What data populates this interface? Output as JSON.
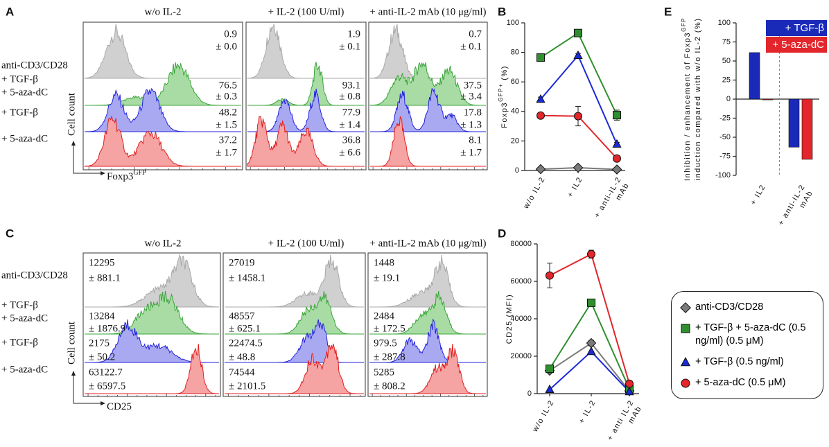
{
  "histogram_panels": [
    {
      "label": "A",
      "columns": [
        "w/o IL-2",
        "+ IL-2 (100 U/ml)",
        "+ anti-IL-2 mAb (10 μg/ml)"
      ],
      "rows": [
        {
          "label": [
            "anti-CD3/CD28"
          ],
          "color": "#111111"
        },
        {
          "label": [
            "+ TGF-β",
            "+ 5-aza-dC"
          ],
          "color": "#2e8b2e"
        },
        {
          "label": [
            "+ TGF-β"
          ],
          "color": "#1c2fd0"
        },
        {
          "label": [
            "+ 5-aza-dC"
          ],
          "color": "#d42020"
        }
      ],
      "ylabel": "Cell count",
      "xlabel": "Foxp3",
      "xlabel_sup": "GFP",
      "stats": [
        [
          [
            "0.9",
            "± 0.0"
          ],
          [
            "1.9",
            "± 0.1"
          ],
          [
            "0.7",
            "± 0.1"
          ]
        ],
        [
          [
            "76.5",
            "± 0.3"
          ],
          [
            "93.1",
            "± 0.8"
          ],
          [
            "37.5",
            "± 3.4"
          ]
        ],
        [
          [
            "48.2",
            "± 1.5"
          ],
          [
            "77.9",
            "± 1.4"
          ],
          [
            "17.8",
            "± 1.3"
          ]
        ],
        [
          [
            "37.2",
            "± 1.7"
          ],
          [
            "36.8",
            "± 6.6"
          ],
          [
            "8.1",
            "± 1.7"
          ]
        ]
      ]
    },
    {
      "label": "C",
      "columns": [
        "w/o IL-2",
        "+ IL-2 (100 U/ml)",
        "+ anti-IL-2 mAb (10 μg/ml)"
      ],
      "rows": [
        {
          "label": [
            "anti-CD3/CD28"
          ],
          "color": "#111111"
        },
        {
          "label": [
            "+ TGF-β",
            "+ 5-aza-dC"
          ],
          "color": "#2e8b2e"
        },
        {
          "label": [
            "+ TGF-β"
          ],
          "color": "#1c2fd0"
        },
        {
          "label": [
            "+ 5-aza-dC"
          ],
          "color": "#d42020"
        }
      ],
      "ylabel": "Cell count",
      "xlabel": "CD25",
      "xlabel_sup": "",
      "stats": [
        [
          [
            "12295",
            "± 881.1"
          ],
          [
            "27019",
            "± 1458.1"
          ],
          [
            "1448",
            "± 19.1"
          ]
        ],
        [
          [
            "13284",
            "± 1876.9"
          ],
          [
            "48557",
            "± 625.1"
          ],
          [
            "2484",
            "± 172.5"
          ]
        ],
        [
          [
            "2175",
            "± 50.2"
          ],
          [
            "22474.5",
            "± 48.8"
          ],
          [
            "979.5",
            "± 287.8"
          ]
        ],
        [
          [
            "63122.7",
            "± 6597.5"
          ],
          [
            "74544",
            "± 2101.5"
          ],
          [
            "5285",
            "± 808.2"
          ]
        ]
      ]
    }
  ],
  "chart_data": [
    {
      "type": "line",
      "label": "B",
      "ylabel": "Foxp3",
      "ylabel_sup": "GFP+",
      "ylabel_unit": "(%)",
      "categories": [
        [
          "w/o IL-2"
        ],
        [
          "+ IL2"
        ],
        [
          "+ anti-IL-2",
          "mAb"
        ]
      ],
      "ylim": [
        0,
        100
      ],
      "yticks": [
        0,
        20,
        40,
        60,
        80,
        100
      ],
      "series": [
        {
          "color": "#7a7a7a",
          "marker": "diamond",
          "values": [
            0.9,
            1.9,
            0.7
          ],
          "errors": [
            0.0,
            0.1,
            0.1
          ]
        },
        {
          "color": "#2f8f2f",
          "marker": "square",
          "values": [
            76.5,
            93.1,
            37.5
          ],
          "errors": [
            0.3,
            0.8,
            3.4
          ]
        },
        {
          "color": "#1a2ad8",
          "marker": "triangle",
          "values": [
            48.2,
            77.9,
            17.8
          ],
          "errors": [
            1.5,
            1.4,
            1.3
          ]
        },
        {
          "color": "#e2262b",
          "marker": "circle",
          "values": [
            37.2,
            36.8,
            8.1
          ],
          "errors": [
            1.7,
            6.6,
            1.7
          ]
        }
      ]
    },
    {
      "type": "line",
      "label": "D",
      "ylabel": "CD25 (MFI)",
      "ylabel_sup": "",
      "ylabel_unit": "",
      "categories": [
        [
          "w/o IL-2"
        ],
        [
          "+ IL-2"
        ],
        [
          "+ anti IL-2",
          "mAb"
        ]
      ],
      "ylim": [
        0,
        80000
      ],
      "yticks": [
        0,
        20000,
        40000,
        60000,
        80000
      ],
      "series": [
        {
          "name": "anti-CD3/CD28",
          "color": "#7a7a7a",
          "marker": "diamond",
          "values": [
            12295,
            27019,
            1448
          ],
          "errors": [
            881.1,
            1458.1,
            19.1
          ]
        },
        {
          "name": "+ TGF-β + 5-aza-dC (0.5 ng/ml) (0.5 μM)",
          "color": "#2f8f2f",
          "marker": "square",
          "values": [
            13284,
            48557,
            2484
          ],
          "errors": [
            1876.9,
            625.1,
            172.5
          ]
        },
        {
          "name": "+ TGF-β (0.5 ng/ml)",
          "color": "#1a2ad8",
          "marker": "triangle",
          "values": [
            2175,
            22474.5,
            979.5
          ],
          "errors": [
            50.2,
            48.8,
            287.8
          ]
        },
        {
          "name": "+ 5-aza-dC (0.5 μM)",
          "color": "#e2262b",
          "marker": "circle",
          "values": [
            63122.7,
            74544,
            5285
          ],
          "errors": [
            6597.5,
            2101.5,
            808.2
          ]
        }
      ]
    },
    {
      "type": "bar",
      "label": "E",
      "ylabel": "Inhibition / enhancement of Foxp3",
      "ylabel_sup": "GFP",
      "ylabel2": "induction compared with w/o IL-2 (%)",
      "categories": [
        [
          "+ IL2"
        ],
        [
          "+ anti-IL-2",
          "mAb"
        ]
      ],
      "ylim": [
        -100,
        100
      ],
      "yticks": [
        -100,
        -75,
        -50,
        -25,
        0,
        25,
        50,
        75,
        100
      ],
      "legend": "top-right",
      "series": [
        {
          "name": "+ TGF-β",
          "color": "#1a2ab8",
          "values": [
            61,
            -63
          ]
        },
        {
          "name": "+ 5-aza-dC",
          "color": "#e2262b",
          "values": [
            -1,
            -79
          ]
        }
      ]
    }
  ]
}
